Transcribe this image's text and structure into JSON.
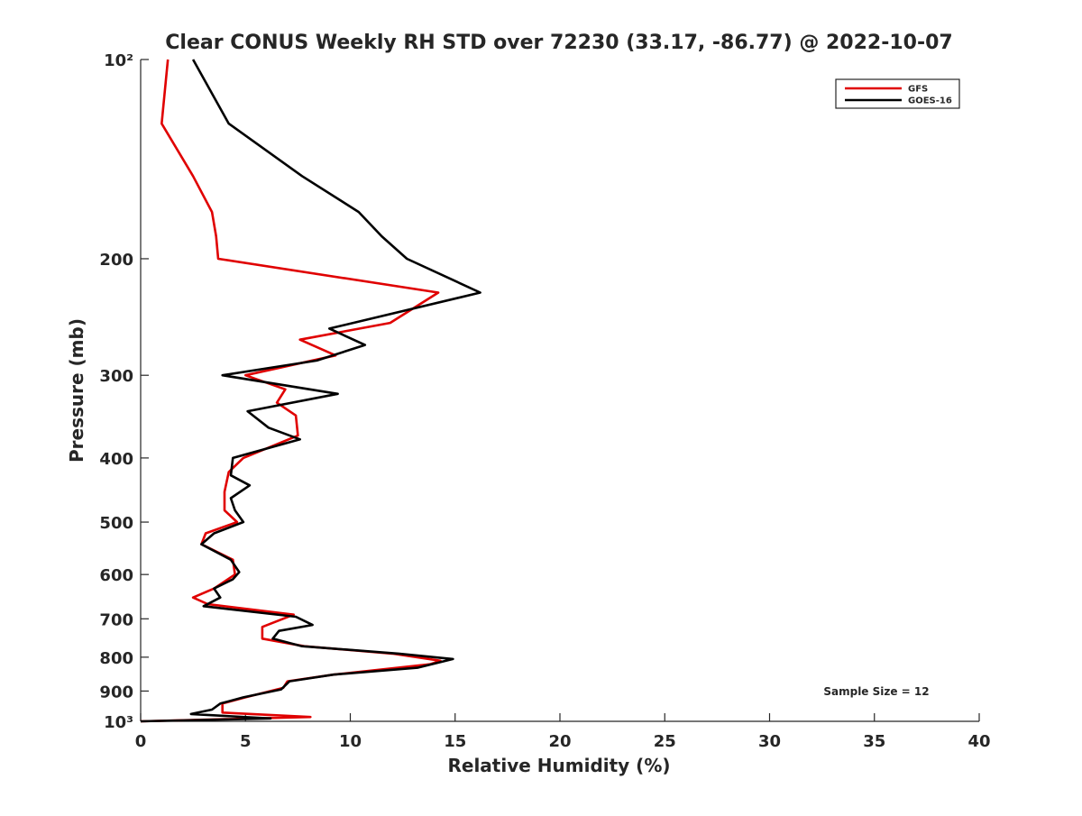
{
  "chart_data": {
    "type": "line",
    "title": "Clear CONUS Weekly RH STD over 72230 (33.17, -86.77) @ 2022-10-07",
    "xlabel": "Relative Humidity (%)",
    "ylabel": "Pressure (mb)",
    "xlim": [
      0,
      40
    ],
    "ylim": [
      100,
      1000
    ],
    "yscale": "log",
    "yreversed": true,
    "x_ticks": [
      0,
      5,
      10,
      15,
      20,
      25,
      30,
      35,
      40
    ],
    "x_tick_labels": [
      "0",
      "5",
      "10",
      "15",
      "20",
      "25",
      "30",
      "35",
      "40"
    ],
    "y_ticks": [
      100,
      200,
      300,
      400,
      500,
      600,
      700,
      800,
      900,
      1000
    ],
    "y_tick_labels": [
      "10²",
      "200",
      "300",
      "400",
      "500",
      "600",
      "700",
      "800",
      "900",
      "10³"
    ],
    "legend_position": "top-right",
    "annotation": "Sample Size = 12",
    "series": [
      {
        "name": "GFS",
        "color": "#e00000",
        "points": [
          [
            1.3,
            100
          ],
          [
            1.0,
            125
          ],
          [
            2.5,
            150
          ],
          [
            3.4,
            170
          ],
          [
            3.6,
            185
          ],
          [
            3.7,
            200
          ],
          [
            14.2,
            225
          ],
          [
            11.9,
            250
          ],
          [
            7.6,
            265
          ],
          [
            9.3,
            280
          ],
          [
            5.0,
            300
          ],
          [
            6.9,
            315
          ],
          [
            6.5,
            330
          ],
          [
            7.4,
            345
          ],
          [
            7.5,
            370
          ],
          [
            4.9,
            400
          ],
          [
            4.2,
            420
          ],
          [
            4.0,
            450
          ],
          [
            4.0,
            480
          ],
          [
            4.6,
            500
          ],
          [
            3.1,
            520
          ],
          [
            2.9,
            540
          ],
          [
            4.4,
            570
          ],
          [
            4.5,
            600
          ],
          [
            3.5,
            630
          ],
          [
            2.5,
            650
          ],
          [
            3.2,
            665
          ],
          [
            7.3,
            690
          ],
          [
            5.8,
            720
          ],
          [
            5.8,
            750
          ],
          [
            7.8,
            770
          ],
          [
            12.0,
            790
          ],
          [
            14.3,
            810
          ],
          [
            13.8,
            820
          ],
          [
            9.2,
            850
          ],
          [
            7.0,
            870
          ],
          [
            6.8,
            890
          ],
          [
            5.0,
            920
          ],
          [
            3.9,
            940
          ],
          [
            3.9,
            970
          ],
          [
            8.1,
            985
          ],
          [
            0.0,
            1000
          ]
        ]
      },
      {
        "name": "GOES-16",
        "color": "#000000",
        "points": [
          [
            2.5,
            100
          ],
          [
            4.2,
            125
          ],
          [
            7.7,
            150
          ],
          [
            10.4,
            170
          ],
          [
            11.5,
            185
          ],
          [
            12.7,
            200
          ],
          [
            16.2,
            225
          ],
          [
            9.0,
            255
          ],
          [
            10.7,
            270
          ],
          [
            8.4,
            285
          ],
          [
            3.9,
            300
          ],
          [
            9.4,
            320
          ],
          [
            5.1,
            340
          ],
          [
            6.1,
            360
          ],
          [
            7.6,
            375
          ],
          [
            4.4,
            400
          ],
          [
            4.3,
            425
          ],
          [
            5.2,
            440
          ],
          [
            4.3,
            460
          ],
          [
            4.5,
            480
          ],
          [
            4.9,
            500
          ],
          [
            3.5,
            520
          ],
          [
            2.9,
            540
          ],
          [
            4.3,
            570
          ],
          [
            4.7,
            595
          ],
          [
            4.4,
            610
          ],
          [
            3.5,
            630
          ],
          [
            3.8,
            650
          ],
          [
            3.0,
            670
          ],
          [
            7.4,
            695
          ],
          [
            8.2,
            715
          ],
          [
            6.6,
            730
          ],
          [
            6.3,
            750
          ],
          [
            7.7,
            770
          ],
          [
            12.3,
            790
          ],
          [
            14.9,
            805
          ],
          [
            13.2,
            830
          ],
          [
            9.2,
            850
          ],
          [
            7.1,
            870
          ],
          [
            6.7,
            895
          ],
          [
            4.9,
            920
          ],
          [
            3.8,
            940
          ],
          [
            3.4,
            960
          ],
          [
            2.4,
            975
          ],
          [
            6.2,
            990
          ],
          [
            0.0,
            1000
          ]
        ]
      }
    ]
  }
}
